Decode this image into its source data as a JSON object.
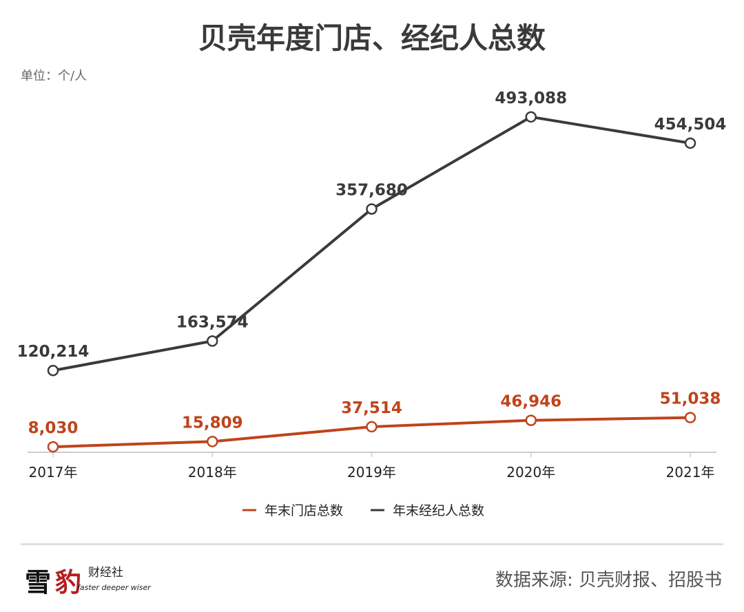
{
  "chart_data": {
    "type": "line",
    "title": "贝壳年度门店、经纪人总数",
    "unit_label": "单位：个/人",
    "categories": [
      "2017年",
      "2018年",
      "2019年",
      "2020年",
      "2021年"
    ],
    "ylim": [
      0,
      500000
    ],
    "grid": false,
    "legend_position": "bottom-center",
    "series": [
      {
        "name": "年末门店总数",
        "color": "#c0431b",
        "values": [
          8030,
          15809,
          37514,
          46946,
          51038
        ],
        "labels": [
          "8,030",
          "15,809",
          "37,514",
          "46,946",
          "51,038"
        ]
      },
      {
        "name": "年末经纪人总数",
        "color": "#3a3a3a",
        "values": [
          120214,
          163574,
          357680,
          493088,
          454504
        ],
        "labels": [
          "120,214",
          "163,574",
          "357,680",
          "493,088",
          "454,504"
        ]
      }
    ]
  },
  "footer": {
    "logo_big1": "雪",
    "logo_big2": "豹",
    "logo_small": "财经社",
    "logo_slogan": "faster deeper wiser",
    "source": "数据来源: 贝壳财报、招股书"
  }
}
